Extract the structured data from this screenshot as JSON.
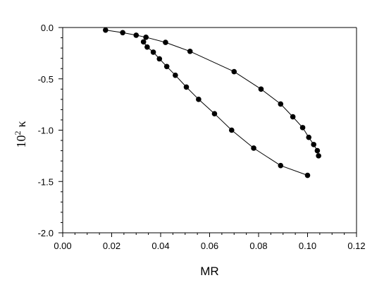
{
  "chart_data": {
    "type": "scatter",
    "xlabel": "MR",
    "ylabel": {
      "base": "10",
      "exp": "2",
      "symbol": "κ"
    },
    "xlim": [
      0.0,
      0.12
    ],
    "ylim": [
      -2.0,
      0.0
    ],
    "xticks": [
      0.0,
      0.02,
      0.04,
      0.06,
      0.08,
      0.1,
      0.12
    ],
    "xtick_labels": [
      "0.00",
      "0.02",
      "0.04",
      "0.06",
      "0.08",
      "0.10",
      "0.12"
    ],
    "yticks": [
      0.0,
      -0.5,
      -1.0,
      -1.5,
      -2.0
    ],
    "ytick_labels": [
      "0.0",
      "-0.5",
      "-1.0",
      "-1.5",
      "-2.0"
    ],
    "grid": false,
    "series": [
      {
        "points": [
          [
            0.0175,
            -0.025
          ],
          [
            0.0245,
            -0.05
          ],
          [
            0.03,
            -0.075
          ],
          [
            0.034,
            -0.095
          ],
          [
            0.042,
            -0.145
          ],
          [
            0.052,
            -0.232
          ],
          [
            0.07,
            -0.43
          ],
          [
            0.081,
            -0.6
          ],
          [
            0.089,
            -0.745
          ],
          [
            0.094,
            -0.87
          ],
          [
            0.098,
            -0.975
          ],
          [
            0.1005,
            -1.07
          ],
          [
            0.1025,
            -1.14
          ],
          [
            0.104,
            -1.2
          ],
          [
            0.1045,
            -1.25
          ]
        ]
      },
      {
        "points": [
          [
            0.033,
            -0.14
          ],
          [
            0.0345,
            -0.19
          ],
          [
            0.037,
            -0.24
          ],
          [
            0.0395,
            -0.305
          ],
          [
            0.0425,
            -0.38
          ],
          [
            0.046,
            -0.465
          ],
          [
            0.0505,
            -0.58
          ],
          [
            0.0555,
            -0.7
          ],
          [
            0.062,
            -0.84
          ],
          [
            0.069,
            -1.0
          ],
          [
            0.078,
            -1.175
          ],
          [
            0.089,
            -1.345
          ],
          [
            0.1,
            -1.44
          ]
        ]
      }
    ]
  }
}
